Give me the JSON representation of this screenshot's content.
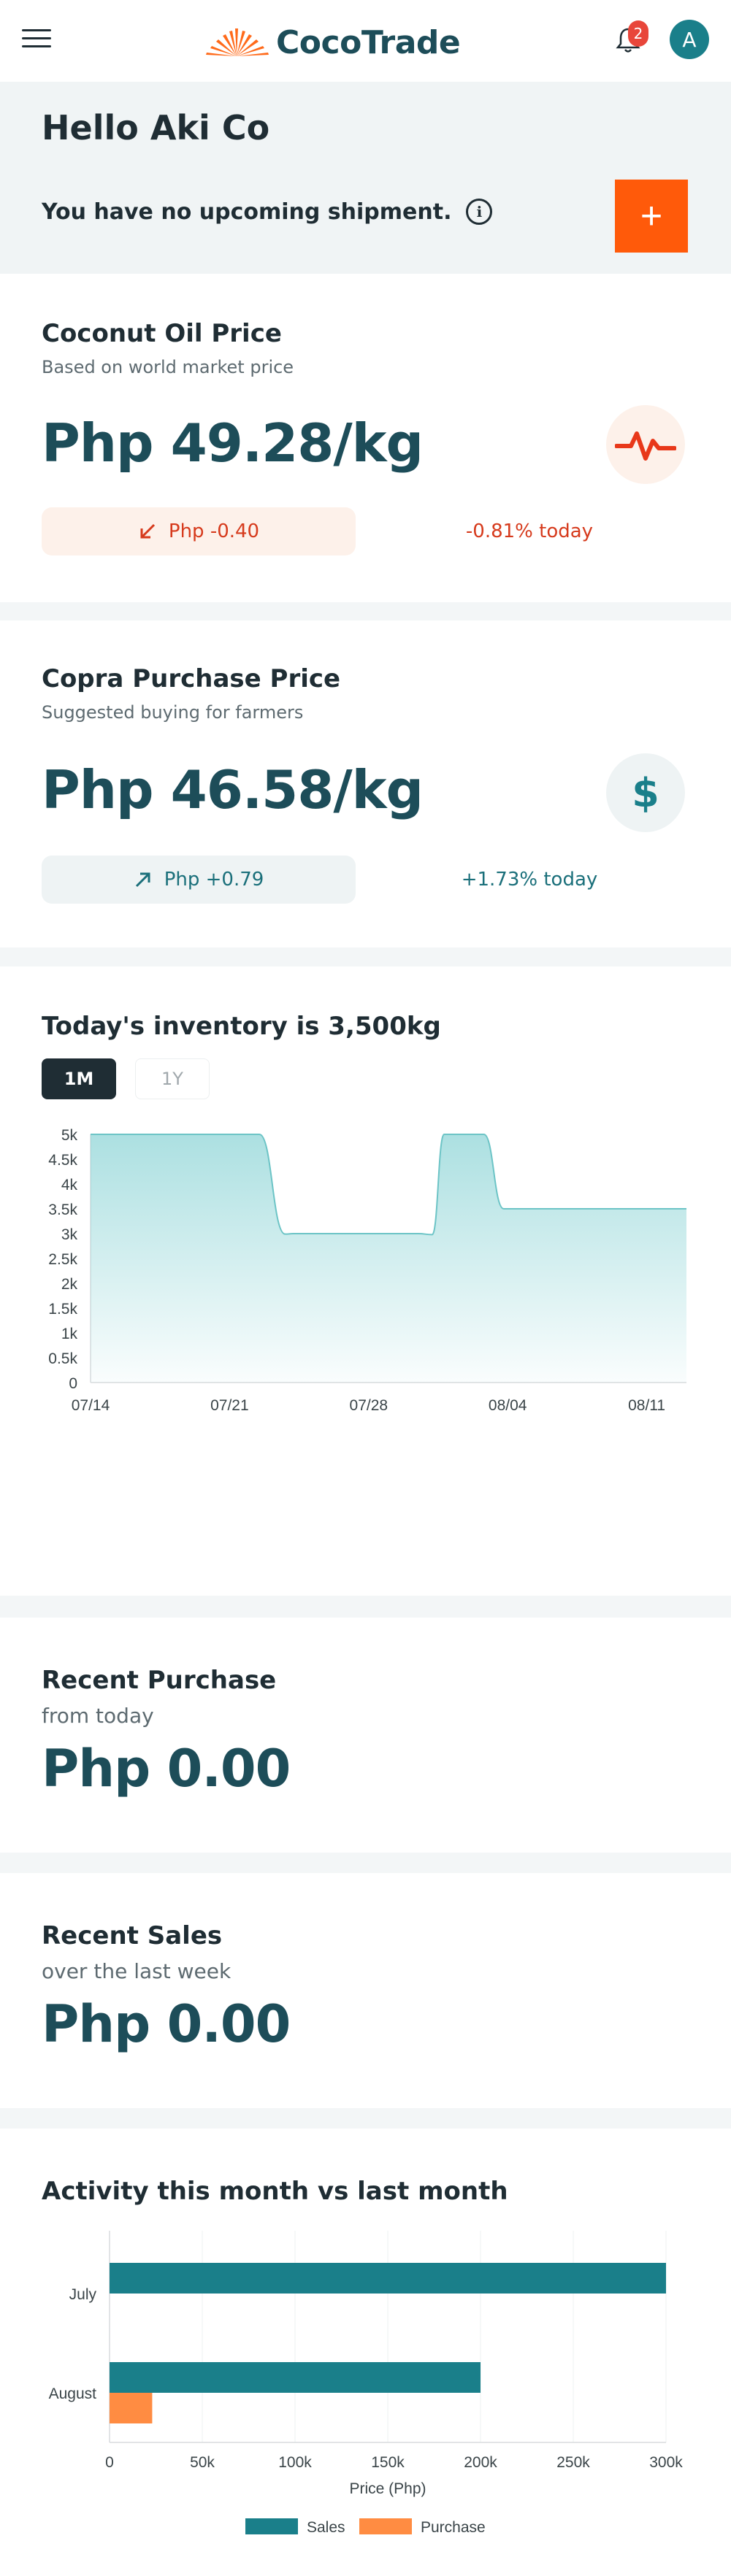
{
  "header": {
    "app_name": "CocoTrade",
    "notification_count": "2",
    "avatar_initial": "A",
    "brand_color": "#1d4d59",
    "accent_color": "#ff5a0a"
  },
  "greeting": {
    "title": "Hello Aki Co",
    "shipment_text": "You have no upcoming shipment.",
    "info_icon": "i",
    "add_label": "+"
  },
  "coconut_oil": {
    "title": "Coconut Oil Price",
    "subtitle": "Based on world market price",
    "price": "Php 49.28/kg",
    "change": "Php -0.40",
    "change_pct": "-0.81% today",
    "icon": "pulse-icon"
  },
  "copra": {
    "title": "Copra Purchase Price",
    "subtitle": "Suggested buying for farmers",
    "price": "Php 46.58/kg",
    "change": "Php +0.79",
    "change_pct": "+1.73% today",
    "icon": "dollar-icon",
    "icon_glyph": "$"
  },
  "inventory": {
    "title": "Today's inventory is 3,500kg",
    "range_1m": "1M",
    "range_1y": "1Y"
  },
  "recent_purchase": {
    "title": "Recent Purchase",
    "subtitle": "from today",
    "value": "Php 0.00"
  },
  "recent_sales": {
    "title": "Recent Sales",
    "subtitle": "over the last week",
    "value": "Php 0.00"
  },
  "activity": {
    "title": "Activity this month vs last month"
  },
  "chart_data": [
    {
      "type": "area",
      "title": "Today's inventory is 3,500kg",
      "x_ticks": [
        "07/14",
        "07/21",
        "07/28",
        "08/04",
        "08/11"
      ],
      "y_ticks": [
        "0",
        "0.5k",
        "1k",
        "1.5k",
        "2k",
        "2.5k",
        "3k",
        "3.5k",
        "4k",
        "4.5k",
        "5k"
      ],
      "ylim": [
        0,
        5000
      ],
      "x_range_days": [
        0,
        30
      ],
      "points": [
        {
          "day": 0,
          "y": 5000
        },
        {
          "day": 8.5,
          "y": 5000
        },
        {
          "day": 9.8,
          "y": 2990
        },
        {
          "day": 10.2,
          "y": 3000
        },
        {
          "day": 16.5,
          "y": 3000
        },
        {
          "day": 17.2,
          "y": 2980
        },
        {
          "day": 17.8,
          "y": 5000
        },
        {
          "day": 19.8,
          "y": 5000
        },
        {
          "day": 20.8,
          "y": 3500
        },
        {
          "day": 30,
          "y": 3500
        }
      ],
      "color": "#7fcfd1"
    },
    {
      "type": "bar",
      "orientation": "horizontal",
      "categories": [
        "July",
        "August"
      ],
      "series": [
        {
          "name": "Sales",
          "values": [
            300000,
            200000
          ],
          "color": "#1a7f8a"
        },
        {
          "name": "Purchase",
          "values": [
            0,
            23000
          ],
          "color": "#ff8c42"
        }
      ],
      "xlabel": "Price (Php)",
      "x_ticks": [
        "0",
        "50k",
        "100k",
        "150k",
        "200k",
        "250k",
        "300k"
      ],
      "xlim": [
        0,
        300000
      ],
      "legend": "bottom"
    }
  ]
}
